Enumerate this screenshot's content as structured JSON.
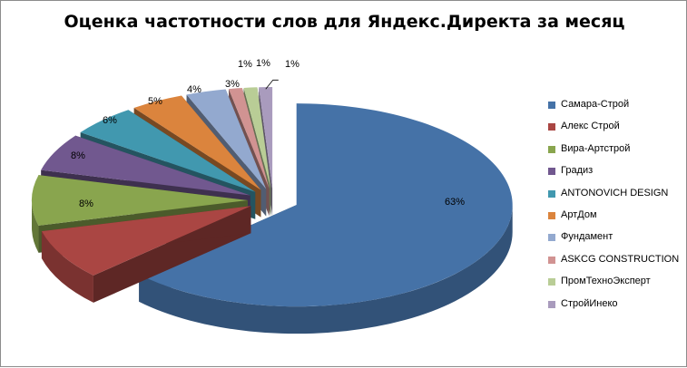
{
  "chart_data": {
    "type": "pie",
    "title": "Оценка частотности слов для Яндекс.Директа за месяц",
    "categories": [
      "Самара-Строй",
      "Алекс Строй",
      "Вира-Артстрой",
      "Градиз",
      "ANTONOVICH DESIGN",
      "АртДом",
      "Фундамент",
      "ASKCG CONSTRUCTION",
      "ПромТехноЭксперт",
      "СтройИнеко"
    ],
    "values": [
      63,
      8,
      8,
      6,
      5,
      4,
      3,
      1,
      1,
      1
    ],
    "labels": [
      "63%",
      "8%",
      "8%",
      "6%",
      "5%",
      "4%",
      "3%",
      "1%",
      "1%",
      "1%"
    ],
    "colors": [
      "#4572A7",
      "#AA4643",
      "#89A54E",
      "#71588F",
      "#4198AF",
      "#DB843D",
      "#93A9CF",
      "#D19392",
      "#B9CD96",
      "#A99BBD"
    ],
    "exploded": true,
    "three_d": true,
    "legend_position": "right"
  }
}
